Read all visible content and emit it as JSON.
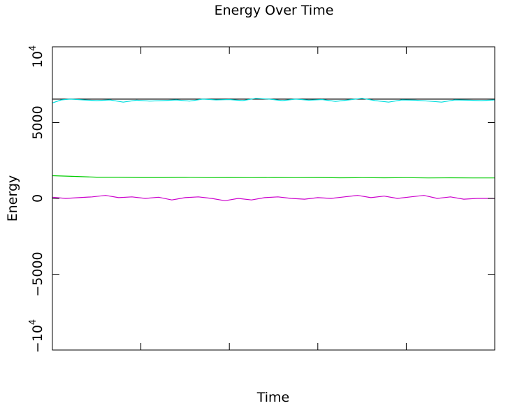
{
  "chart_data": {
    "type": "line",
    "title": "Energy Over Time",
    "xlabel": "Time",
    "ylabel": "Energy",
    "xlim": [
      0,
      100
    ],
    "ylim": [
      -10000,
      10000
    ],
    "yticks": [
      {
        "value": -10000,
        "base": "−10",
        "exp": "4"
      },
      {
        "value": -5000,
        "label": "−5000"
      },
      {
        "value": 0,
        "label": "0"
      },
      {
        "value": 5000,
        "label": "5000"
      },
      {
        "value": 10000,
        "base": "10",
        "exp": "4"
      }
    ],
    "xticks_minor": [
      20,
      40,
      60,
      80
    ],
    "grid": false,
    "colors": {
      "total": "#000000",
      "cyan": "#00dddd",
      "green": "#00cc00",
      "magenta": "#cc00cc"
    },
    "series": [
      {
        "key": "total",
        "color": "#000000",
        "x": [
          0,
          100
        ],
        "y": [
          6550,
          6550
        ]
      },
      {
        "key": "cyan",
        "color": "#00dddd",
        "x": [
          0,
          2,
          4,
          7,
          10,
          13,
          16,
          19,
          22,
          25,
          28,
          31,
          34,
          37,
          40,
          43,
          46,
          49,
          52,
          55,
          58,
          61,
          64,
          67,
          70,
          73,
          76,
          79,
          82,
          85,
          88,
          91,
          94,
          97,
          100
        ],
        "y": [
          6300,
          6500,
          6550,
          6500,
          6450,
          6500,
          6350,
          6480,
          6420,
          6450,
          6500,
          6420,
          6550,
          6500,
          6520,
          6450,
          6600,
          6550,
          6450,
          6550,
          6480,
          6520,
          6400,
          6500,
          6600,
          6450,
          6350,
          6500,
          6480,
          6420,
          6350,
          6500,
          6480,
          6450,
          6500
        ]
      },
      {
        "key": "green",
        "color": "#00cc00",
        "x": [
          0,
          5,
          10,
          15,
          20,
          25,
          30,
          35,
          40,
          45,
          50,
          55,
          60,
          65,
          70,
          75,
          80,
          85,
          90,
          95,
          100
        ],
        "y": [
          1500,
          1450,
          1400,
          1400,
          1380,
          1380,
          1390,
          1370,
          1380,
          1370,
          1380,
          1370,
          1380,
          1360,
          1370,
          1360,
          1370,
          1350,
          1360,
          1350,
          1350
        ]
      },
      {
        "key": "magenta",
        "color": "#cc00cc",
        "x": [
          0,
          3,
          6,
          9,
          12,
          15,
          18,
          21,
          24,
          27,
          30,
          33,
          36,
          39,
          42,
          45,
          48,
          51,
          54,
          57,
          60,
          63,
          66,
          69,
          72,
          75,
          78,
          81,
          84,
          87,
          90,
          93,
          96,
          100
        ],
        "y": [
          80,
          0,
          50,
          100,
          200,
          50,
          100,
          0,
          80,
          -100,
          50,
          100,
          0,
          -150,
          0,
          -100,
          50,
          100,
          0,
          -50,
          50,
          0,
          100,
          200,
          50,
          150,
          0,
          100,
          200,
          0,
          100,
          -50,
          0,
          0
        ]
      }
    ]
  }
}
